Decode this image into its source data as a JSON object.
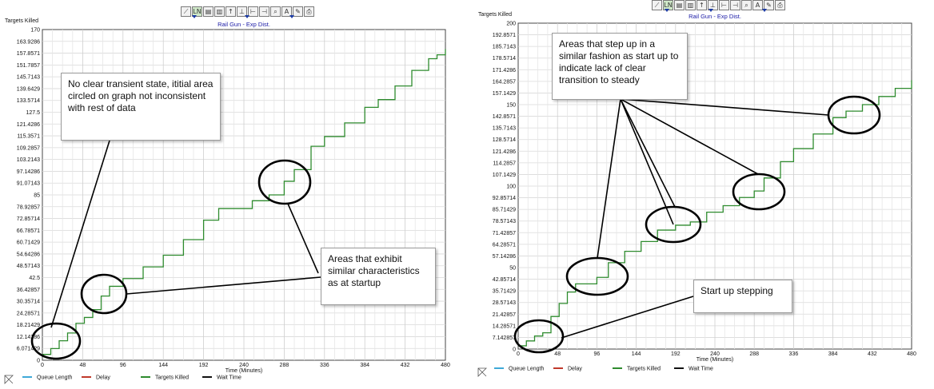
{
  "toolbar": {
    "icons": [
      "line-chart-icon",
      "ln-icon",
      "bars-icon",
      "table-icon",
      "pin-icon",
      "step-icon",
      "measure-icon",
      "range-icon",
      "zoom-icon",
      "text-icon",
      "pencil-icon",
      "printer-icon"
    ],
    "glyphs": [
      "⟋",
      "LN",
      "▤",
      "▥",
      "↑",
      "⊥",
      "⊢",
      "⊣",
      "⌕",
      "A",
      "✎",
      "⎙"
    ]
  },
  "legend": {
    "items": [
      {
        "label": "Queue Length",
        "color": "#3fa9d8"
      },
      {
        "label": "Delay",
        "color": "#c0392b"
      },
      {
        "label": "Targets Killed",
        "color": "#2e8b2e"
      },
      {
        "label": "Wait Time",
        "color": "#111111"
      }
    ]
  },
  "chart_data": [
    {
      "type": "line",
      "title": "Rail Gun - Exp Dist.",
      "xlabel": "Time (Minutes)",
      "ylabel": "Targets Killed",
      "xlim": [
        0,
        480
      ],
      "ylim": [
        0,
        170
      ],
      "x_ticks": [
        "0",
        "48",
        "96",
        "144",
        "192",
        "240",
        "288",
        "336",
        "384",
        "432",
        "480"
      ],
      "y_ticks": [
        "0",
        "6.071429",
        "12.14286",
        "18.21429",
        "24.28571",
        "30.35714",
        "36.42857",
        "42.5",
        "48.57143",
        "54.64286",
        "60.71429",
        "66.78571",
        "72.85714",
        "78.92857",
        "85",
        "91.07143",
        "97.14286",
        "103.2143",
        "109.2857",
        "115.3571",
        "121.4286",
        "127.5",
        "133.5714",
        "139.6429",
        "145.7143",
        "151.7857",
        "157.8571",
        "163.9286",
        "170"
      ],
      "grid": true,
      "series": [
        {
          "name": "Targets Killed",
          "color": "#2e8b2e",
          "x": [
            0,
            10,
            20,
            30,
            40,
            50,
            60,
            70,
            80,
            96,
            120,
            144,
            168,
            192,
            210,
            230,
            250,
            270,
            288,
            300,
            320,
            336,
            360,
            384,
            400,
            420,
            440,
            460,
            470,
            480
          ],
          "y": [
            3,
            6,
            10,
            14,
            19,
            22,
            26,
            33,
            38,
            42,
            48,
            54,
            62,
            72,
            78,
            78,
            82,
            85,
            92,
            98,
            110,
            115,
            122,
            130,
            134,
            141,
            149,
            155,
            157,
            160
          ]
        }
      ],
      "annotations": [
        {
          "text": "No clear transient state, ititial area circled on graph not inconsistent with rest of data"
        },
        {
          "text": "Areas that exhibit similar characteristics as at startup"
        }
      ]
    },
    {
      "type": "line",
      "title": "Rail Gun - Exp Dist.",
      "xlabel": "Time (Minutes)",
      "ylabel": "Targets Killed",
      "xlim": [
        0,
        480
      ],
      "ylim": [
        0,
        200
      ],
      "x_ticks": [
        "0",
        "48",
        "96",
        "144",
        "192",
        "240",
        "288",
        "336",
        "384",
        "432",
        "480"
      ],
      "y_ticks": [
        "0",
        "7.142857",
        "14.28571",
        "21.42857",
        "28.57143",
        "35.71429",
        "42.85714",
        "50",
        "57.14286",
        "64.28571",
        "71.42857",
        "78.57143",
        "85.71429",
        "92.85714",
        "100",
        "107.1429",
        "114.2857",
        "121.4286",
        "128.5714",
        "135.7143",
        "142.8571",
        "150",
        "157.1429",
        "164.2857",
        "171.4286",
        "178.5714",
        "185.7143",
        "192.8571",
        "200"
      ],
      "grid": true,
      "series": [
        {
          "name": "Targets Killed",
          "color": "#2e8b2e",
          "x": [
            0,
            10,
            20,
            30,
            40,
            50,
            60,
            70,
            80,
            96,
            110,
            130,
            150,
            170,
            192,
            210,
            230,
            250,
            270,
            288,
            300,
            320,
            336,
            360,
            384,
            400,
            420,
            440,
            460,
            480
          ],
          "y": [
            2,
            5,
            8,
            10,
            20,
            28,
            35,
            40,
            40,
            44,
            53,
            60,
            66,
            73,
            76,
            78,
            84,
            88,
            93,
            97,
            105,
            115,
            123,
            132,
            142,
            146,
            150,
            155,
            160,
            165
          ]
        }
      ],
      "annotations": [
        {
          "text": "Areas that step up in a similar fashion  as start up to indicate lack of clear transition to steady"
        },
        {
          "text": "Start up stepping"
        }
      ]
    }
  ]
}
